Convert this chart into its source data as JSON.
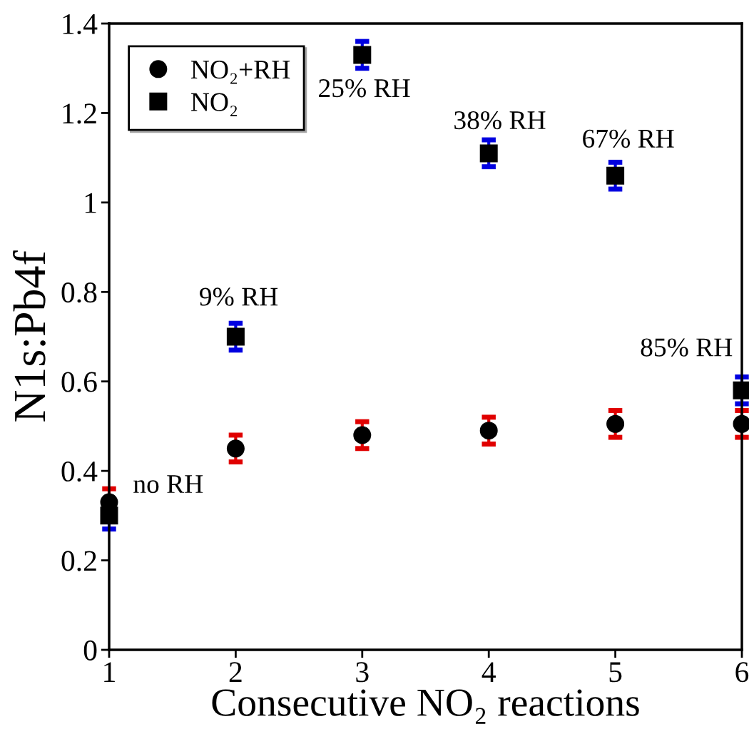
{
  "chart_data": {
    "type": "scatter",
    "xlabel": "Consecutive NO₂ reactions",
    "ylabel": "N1s:Pb4f",
    "x": [
      1,
      2,
      3,
      4,
      5,
      6
    ],
    "series": [
      {
        "name": "NO₂+RH",
        "color": "#000000",
        "marker": "circle",
        "values": [
          0.33,
          0.45,
          0.48,
          0.49,
          0.505,
          0.505
        ],
        "errors": [
          0.03,
          0.03,
          0.03,
          0.03,
          0.03,
          0.03
        ]
      },
      {
        "name": "NO₂",
        "color": "#000000",
        "marker": "square",
        "values": [
          0.3,
          0.7,
          1.33,
          1.11,
          1.06,
          0.58
        ],
        "errors": [
          0.03,
          0.03,
          0.03,
          0.03,
          0.03,
          0.03
        ]
      }
    ],
    "annotations": [
      {
        "text": "no RH",
        "x": 1,
        "y": 0.33
      },
      {
        "text": "9% RH",
        "x": 2,
        "y": 0.7
      },
      {
        "text": "25% RH",
        "x": 3,
        "y": 1.33
      },
      {
        "text": "38% RH",
        "x": 4,
        "y": 1.11
      },
      {
        "text": "67% RH",
        "x": 5,
        "y": 1.06
      },
      {
        "text": "85% RH",
        "x": 6,
        "y": 0.58
      }
    ],
    "xlim": [
      1,
      6
    ],
    "xticks": [
      1,
      2,
      3,
      4,
      5,
      6
    ],
    "ylim": [
      0,
      1.4
    ],
    "yticks": [
      0,
      0.2,
      0.4,
      0.6,
      0.8,
      1,
      1.2,
      1.4
    ],
    "grid": false,
    "legend": "top left"
  }
}
